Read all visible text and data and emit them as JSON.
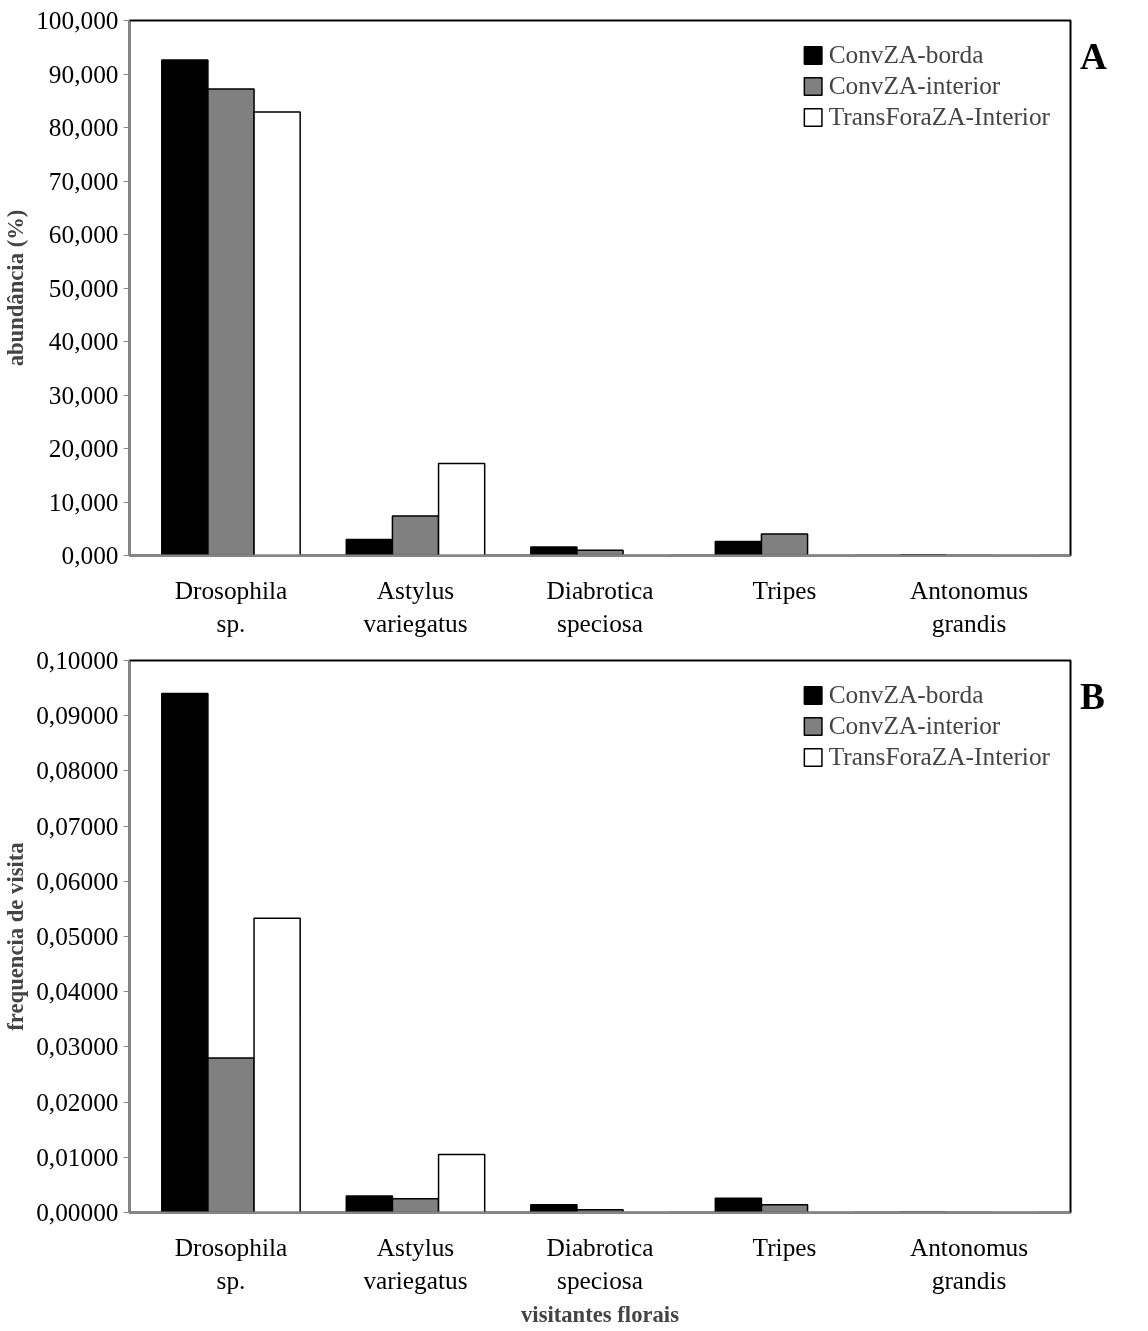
{
  "chart_data": [
    {
      "type": "bar",
      "ylabel": "abundância (%)",
      "annotations": [
        "A"
      ],
      "categories": [
        "Drosophila\nsp.",
        "Astylus\nvariegatus",
        "Diabrotica\nspeciosa",
        "Tripes",
        "Antonomus\ngrandis"
      ],
      "series": [
        {
          "name": "ConvZA-borda",
          "color": "#000000",
          "values": [
            92.6,
            3.0,
            1.6,
            2.6,
            0.1
          ]
        },
        {
          "name": "ConvZA-interior",
          "color": "#808080",
          "values": [
            87.2,
            7.4,
            1.0,
            4.0,
            null
          ]
        },
        {
          "name": "TransForaZA-Interior",
          "color": "#ffffff",
          "values": [
            82.9,
            17.2,
            null,
            null,
            null
          ]
        }
      ],
      "ylim": [
        0,
        100
      ],
      "yticks": [
        {
          "value": 0,
          "label": "0,000"
        },
        {
          "value": 10,
          "label": "10,000"
        },
        {
          "value": 20,
          "label": "20,000"
        },
        {
          "value": 30,
          "label": "30,000"
        },
        {
          "value": 40,
          "label": "40,000"
        },
        {
          "value": 50,
          "label": "50,000"
        },
        {
          "value": 60,
          "label": "60,000"
        },
        {
          "value": 70,
          "label": "70,000"
        },
        {
          "value": 80,
          "label": "80,000"
        },
        {
          "value": 90,
          "label": "90,000"
        },
        {
          "value": 100,
          "label": "100,000"
        }
      ],
      "grid": false,
      "legend": "top right"
    },
    {
      "type": "bar",
      "ylabel": "frequencia de visita",
      "xlabel": "visitantes florais",
      "annotations": [
        "B"
      ],
      "categories": [
        "Drosophila\nsp.",
        "Astylus\nvariegatus",
        "Diabrotica\nspeciosa",
        "Tripes",
        "Antonomus\ngrandis"
      ],
      "series": [
        {
          "name": "ConvZA-borda",
          "color": "#000000",
          "values": [
            0.094,
            0.003,
            0.0014,
            0.0026,
            0
          ]
        },
        {
          "name": "ConvZA-interior",
          "color": "#808080",
          "values": [
            0.028,
            0.0025,
            0.0005,
            0.0014,
            0
          ]
        },
        {
          "name": "TransForaZA-Interior",
          "color": "#ffffff",
          "values": [
            0.0533,
            0.0105,
            0,
            0,
            0
          ]
        }
      ],
      "ylim": [
        0,
        0.1
      ],
      "yticks": [
        {
          "value": 0,
          "label": "0,00000"
        },
        {
          "value": 0.01,
          "label": "0,01000"
        },
        {
          "value": 0.02,
          "label": "0,02000"
        },
        {
          "value": 0.03,
          "label": "0,03000"
        },
        {
          "value": 0.04,
          "label": "0,04000"
        },
        {
          "value": 0.05,
          "label": "0,05000"
        },
        {
          "value": 0.06,
          "label": "0,06000"
        },
        {
          "value": 0.07,
          "label": "0,07000"
        },
        {
          "value": 0.08,
          "label": "0,08000"
        },
        {
          "value": 0.09,
          "label": "0,09000"
        },
        {
          "value": 0.1,
          "label": "0,10000"
        }
      ],
      "grid": false,
      "legend": "top right"
    }
  ]
}
